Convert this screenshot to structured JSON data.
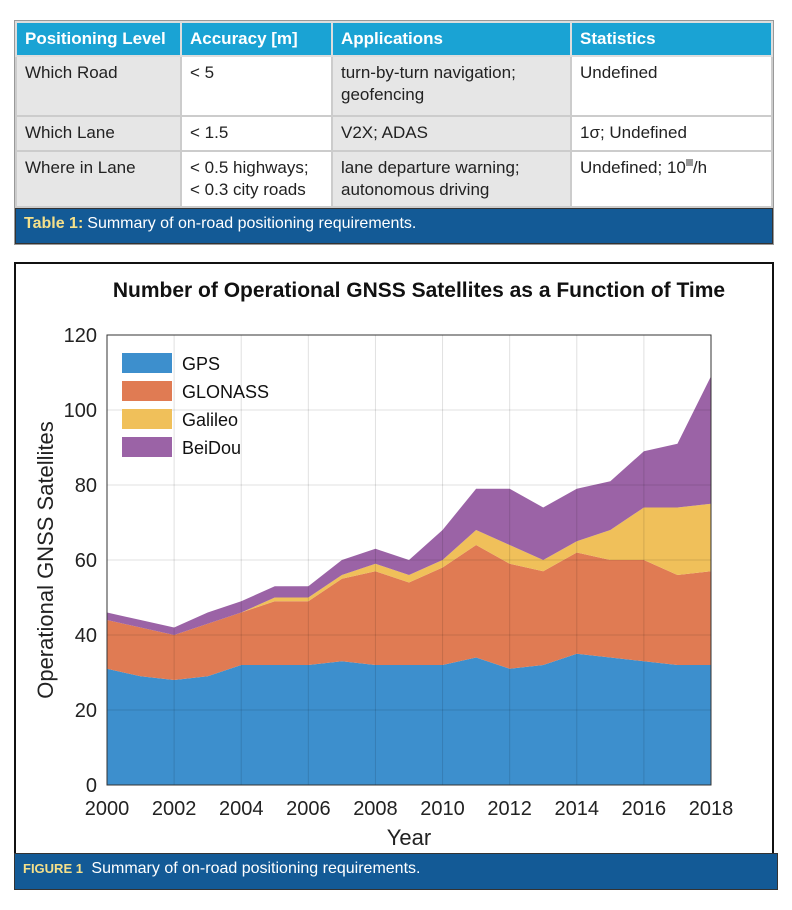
{
  "table": {
    "headers": [
      "Positioning Level",
      "Accuracy [m]",
      "Applications",
      "Statistics"
    ],
    "rows": [
      {
        "level": "Which Road",
        "accuracy": [
          "< 5"
        ],
        "applications": [
          "turn-by-turn navigation;",
          "geofencing"
        ],
        "statistics": "Undefined"
      },
      {
        "level": "Which Lane",
        "accuracy": [
          "< 1.5"
        ],
        "applications": [
          "V2X; ADAS"
        ],
        "statistics": "1σ; Undefined"
      },
      {
        "level": "Where in Lane",
        "accuracy": [
          "< 0.5 highways;",
          "< 0.3 city roads"
        ],
        "applications": [
          "lane departure warning;",
          "autonomous driving"
        ],
        "statistics": "Undefined; 10",
        "statistics_suffix": "/h"
      }
    ],
    "caption_label": "Table 1:",
    "caption_text": "Summary of on-road positioning requirements."
  },
  "figure": {
    "caption_label": "FIGURE 1",
    "caption_text": "Summary of on-road positioning requirements."
  },
  "chart_data": {
    "type": "area",
    "stacked": true,
    "title": "Number of Operational GNSS Satellites as a Function of Time",
    "xlabel": "Year",
    "ylabel": "Operational GNSS Satellites",
    "xlim": [
      2000,
      2018
    ],
    "ylim": [
      0,
      120
    ],
    "xticks": [
      2000,
      2002,
      2004,
      2006,
      2008,
      2010,
      2012,
      2014,
      2016,
      2018
    ],
    "yticks": [
      0,
      20,
      40,
      60,
      80,
      100,
      120
    ],
    "grid": true,
    "legend": "top-left",
    "x": [
      2000,
      2001,
      2002,
      2003,
      2004,
      2005,
      2006,
      2007,
      2008,
      2009,
      2010,
      2011,
      2012,
      2013,
      2014,
      2015,
      2016,
      2017,
      2018
    ],
    "series": [
      {
        "name": "GPS",
        "color": "#3d8fcd",
        "values": [
          31,
          29,
          28,
          29,
          32,
          32,
          32,
          33,
          32,
          32,
          32,
          34,
          31,
          32,
          35,
          34,
          33,
          32,
          32
        ]
      },
      {
        "name": "GLONASS",
        "color": "#e07b53",
        "values": [
          13,
          13,
          12,
          14,
          14,
          17,
          17,
          22,
          25,
          22,
          26,
          30,
          28,
          25,
          27,
          26,
          27,
          24,
          25
        ]
      },
      {
        "name": "Galileo",
        "color": "#f0c05a",
        "values": [
          0,
          0,
          0,
          0,
          0,
          1,
          1,
          1,
          2,
          2,
          2,
          4,
          5,
          3,
          3,
          8,
          14,
          18,
          18
        ]
      },
      {
        "name": "BeiDou",
        "color": "#9b63a6",
        "values": [
          2,
          2,
          2,
          3,
          3,
          3,
          3,
          4,
          4,
          4,
          8,
          11,
          15,
          14,
          14,
          13,
          15,
          17,
          34
        ]
      }
    ]
  }
}
